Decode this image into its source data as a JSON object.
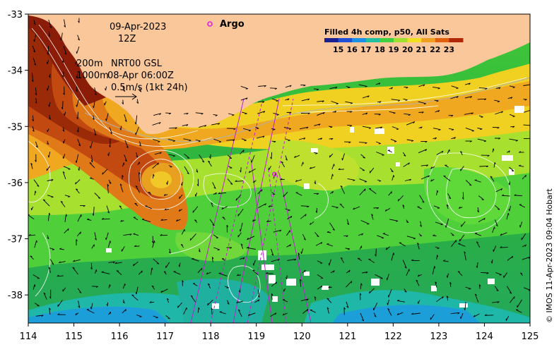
{
  "map": {
    "date": "09-Apr-2023",
    "hour": "12Z",
    "argo_label": "Argo",
    "contour_depth_1": "200m",
    "contour_depth_2": "1000m",
    "sla_product": "NRT00 GSL",
    "sla_time": "08-Apr 06:00Z",
    "vector_scale": "0.5m/s (1kt 24h)",
    "credit": "© IMOS 11-Apr-2023 09:04 Hobart",
    "x_ticks": [
      "114",
      "115",
      "116",
      "117",
      "118",
      "119",
      "120",
      "121",
      "122",
      "123",
      "124",
      "125"
    ],
    "y_ticks": [
      "-33",
      "-34",
      "-35",
      "-36",
      "-37",
      "-38"
    ],
    "x_range": [
      114,
      125
    ],
    "y_range": [
      -38.5,
      -33
    ],
    "legend": {
      "title": "Filled 4h comp, p50, All Sats",
      "ticks": [
        "15",
        "16",
        "17",
        "18",
        "19",
        "20",
        "21",
        "22",
        "23"
      ],
      "colors": [
        "#1c1f8f",
        "#1f4fd6",
        "#1c8fe6",
        "#1fbf9f",
        "#3fcf3f",
        "#9fe030",
        "#f0e020",
        "#f0a020",
        "#e06010",
        "#b02808"
      ]
    },
    "argo_float": {
      "lon": 119.4,
      "lat": -35.85
    },
    "land_color": "#f9c79a"
  }
}
